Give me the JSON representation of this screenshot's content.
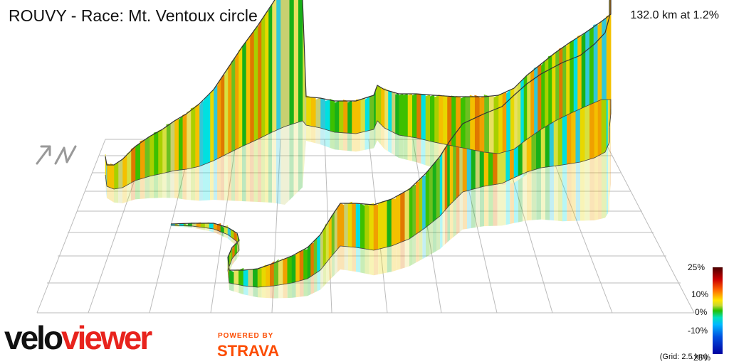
{
  "header": {
    "title": "ROUVY - Race: Mt. Ventoux circle",
    "stats": "132.0 km at 1.2%"
  },
  "branding": {
    "logo_part1": "velo",
    "logo_part2": "viewer",
    "powered_by": "POWERED BY",
    "partner": "STRAVA",
    "logo_red": "#e8231d",
    "strava_orange": "#fc4c02"
  },
  "compass": {
    "label": "N",
    "icon": "north-arrow-icon"
  },
  "legend": {
    "labels": [
      "25%",
      "10%",
      "0%",
      "-10%",
      "-25%"
    ],
    "grid_note": "(Grid: 2.5 km)"
  },
  "colors": {
    "grid": "#bbbbbb",
    "steep_down": "#00e0f0",
    "flat": "#22c000",
    "moderate": "#e8e000",
    "steep_up": "#f08a00"
  }
}
